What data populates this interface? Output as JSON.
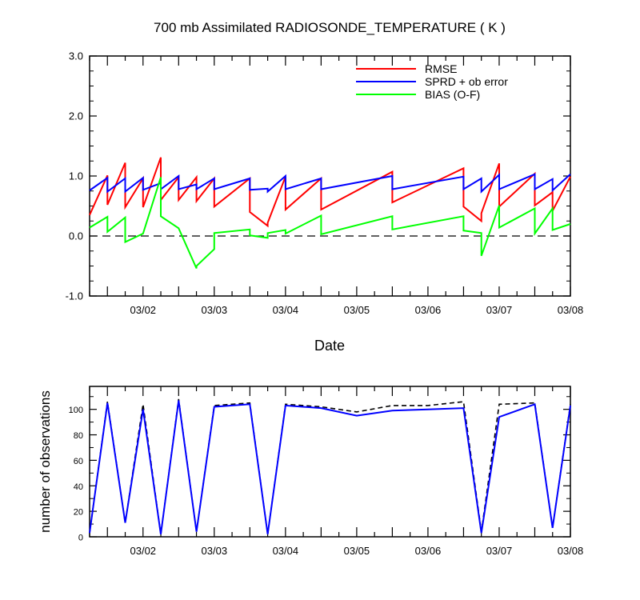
{
  "chart_data": [
    {
      "type": "line",
      "title": "700 mb Assimilated RADIOSONDE_TEMPERATURE ( K )",
      "xlabel": "Date",
      "ylabel": "",
      "x_type": "date",
      "xlim": [
        "2012-03-01 06:00",
        "2012-03-08 00:00"
      ],
      "ylim": [
        -1.0,
        3.0
      ],
      "yticks": [
        -1.0,
        0.0,
        1.0,
        2.0,
        3.0
      ],
      "ytick_labels": [
        "-1.0",
        "0.0",
        "1.0",
        "2.0",
        "3.0"
      ],
      "xtick_labels": [
        "03/02",
        "03/03",
        "03/04",
        "03/05",
        "03/06",
        "03/07",
        "03/08"
      ],
      "zero_line": "dashed",
      "grid": false,
      "legend_position": "top-right",
      "series": [
        {
          "name": "RMSE",
          "color": "#ff0000",
          "x": [
            "2012-03-01 06:00",
            "2012-03-01 12:00",
            "2012-03-01 12:00",
            "2012-03-01 18:00",
            "2012-03-01 18:00",
            "2012-03-02 00:00",
            "2012-03-02 00:00",
            "2012-03-02 06:00",
            "2012-03-02 06:00",
            "2012-03-02 12:00",
            "2012-03-02 12:00",
            "2012-03-02 18:00",
            "2012-03-02 18:00",
            "2012-03-03 00:00",
            "2012-03-03 00:00",
            "2012-03-03 12:00",
            "2012-03-03 12:00",
            "2012-03-03 18:00",
            "2012-03-03 18:00",
            "2012-03-04 00:00",
            "2012-03-04 00:00",
            "2012-03-04 12:00",
            "2012-03-04 12:00",
            "2012-03-05 12:00",
            "2012-03-05 12:00",
            "2012-03-06 12:00",
            "2012-03-06 12:00",
            "2012-03-06 18:00",
            "2012-03-06 18:00",
            "2012-03-07 00:00",
            "2012-03-07 00:00",
            "2012-03-07 12:00",
            "2012-03-07 12:00",
            "2012-03-07 18:00",
            "2012-03-07 18:00",
            "2012-03-08 00:00"
          ],
          "y": [
            0.35,
            1.01,
            0.52,
            1.22,
            0.48,
            0.96,
            0.48,
            1.31,
            0.6,
            0.98,
            0.6,
            0.98,
            0.58,
            0.96,
            0.49,
            0.96,
            0.4,
            0.17,
            0.22,
            0.99,
            0.44,
            0.96,
            0.44,
            1.07,
            0.56,
            1.13,
            0.49,
            0.25,
            0.38,
            1.21,
            0.49,
            1.04,
            0.51,
            0.73,
            0.42,
            0.99
          ]
        },
        {
          "name": "SPRD + ob error",
          "color": "#0000ff",
          "x": [
            "2012-03-01 06:00",
            "2012-03-01 12:00",
            "2012-03-01 12:00",
            "2012-03-01 18:00",
            "2012-03-01 18:00",
            "2012-03-02 00:00",
            "2012-03-02 00:00",
            "2012-03-02 06:00",
            "2012-03-02 06:00",
            "2012-03-02 12:00",
            "2012-03-02 12:00",
            "2012-03-02 18:00",
            "2012-03-02 18:00",
            "2012-03-03 00:00",
            "2012-03-03 00:00",
            "2012-03-03 12:00",
            "2012-03-03 12:00",
            "2012-03-03 18:00",
            "2012-03-03 18:00",
            "2012-03-04 00:00",
            "2012-03-04 00:00",
            "2012-03-04 12:00",
            "2012-03-04 12:00",
            "2012-03-05 12:00",
            "2012-03-05 12:00",
            "2012-03-06 12:00",
            "2012-03-06 12:00",
            "2012-03-06 18:00",
            "2012-03-06 18:00",
            "2012-03-07 00:00",
            "2012-03-07 00:00",
            "2012-03-07 12:00",
            "2012-03-07 12:00",
            "2012-03-07 18:00",
            "2012-03-07 18:00",
            "2012-03-08 00:00"
          ],
          "y": [
            0.76,
            0.97,
            0.74,
            0.96,
            0.74,
            0.97,
            0.77,
            0.88,
            0.78,
            1.0,
            0.78,
            0.86,
            0.78,
            0.96,
            0.78,
            0.96,
            0.77,
            0.79,
            0.74,
            1.0,
            0.78,
            0.96,
            0.78,
            1.0,
            0.78,
            0.99,
            0.78,
            0.96,
            0.74,
            1.02,
            0.78,
            1.03,
            0.78,
            0.95,
            0.76,
            1.03
          ]
        },
        {
          "name": "BIAS (O-F)",
          "color": "#00ff00",
          "x": [
            "2012-03-01 06:00",
            "2012-03-01 12:00",
            "2012-03-01 12:00",
            "2012-03-01 18:00",
            "2012-03-01 18:00",
            "2012-03-02 00:00",
            "2012-03-02 00:00",
            "2012-03-02 06:00",
            "2012-03-02 06:00",
            "2012-03-02 12:00",
            "2012-03-02 18:00",
            "2012-03-02 18:00",
            "2012-03-03 00:00",
            "2012-03-03 00:00",
            "2012-03-03 12:00",
            "2012-03-03 12:00",
            "2012-03-03 18:00",
            "2012-03-03 18:00",
            "2012-03-04 00:00",
            "2012-03-04 00:00",
            "2012-03-04 12:00",
            "2012-03-04 12:00",
            "2012-03-05 12:00",
            "2012-03-05 12:00",
            "2012-03-06 12:00",
            "2012-03-06 12:00",
            "2012-03-06 18:00",
            "2012-03-06 18:00",
            "2012-03-07 00:00",
            "2012-03-07 00:00",
            "2012-03-07 12:00",
            "2012-03-07 12:00",
            "2012-03-07 18:00",
            "2012-03-07 18:00",
            "2012-03-08 00:00"
          ],
          "y": [
            0.14,
            0.32,
            0.07,
            0.31,
            -0.1,
            0.04,
            0.04,
            0.98,
            0.33,
            0.13,
            -0.54,
            -0.5,
            -0.22,
            0.05,
            0.11,
            0.01,
            -0.03,
            0.05,
            0.1,
            0.04,
            0.34,
            0.03,
            0.33,
            0.11,
            0.33,
            0.09,
            0.05,
            -0.33,
            0.51,
            0.14,
            0.46,
            0.04,
            0.46,
            0.1,
            0.2
          ]
        }
      ]
    },
    {
      "type": "line",
      "title": "",
      "xlabel": "",
      "ylabel": "number of observations",
      "x_type": "date",
      "xlim": [
        "2012-03-01 06:00",
        "2012-03-08 00:00"
      ],
      "ylim": [
        0,
        118
      ],
      "yticks": [
        0,
        20,
        40,
        60,
        80,
        100
      ],
      "ytick_labels": [
        "0",
        "20",
        "40",
        "60",
        "80",
        "100"
      ],
      "xtick_labels": [
        "03/02",
        "03/03",
        "03/04",
        "03/05",
        "03/06",
        "03/07",
        "03/08"
      ],
      "grid": false,
      "series": [
        {
          "color": "#000000",
          "style": "dashed",
          "x": [
            "2012-03-01 06:00",
            "2012-03-01 12:00",
            "2012-03-01 18:00",
            "2012-03-02 00:00",
            "2012-03-02 06:00",
            "2012-03-02 12:00",
            "2012-03-02 18:00",
            "2012-03-03 00:00",
            "2012-03-03 12:00",
            "2012-03-03 18:00",
            "2012-03-04 00:00",
            "2012-03-04 12:00",
            "2012-03-05 00:00",
            "2012-03-05 12:00",
            "2012-03-06 00:00",
            "2012-03-06 12:00",
            "2012-03-06 18:00",
            "2012-03-07 00:00",
            "2012-03-07 12:00",
            "2012-03-07 18:00",
            "2012-03-08 00:00"
          ],
          "y": [
            3,
            106,
            11,
            104,
            2,
            108,
            4,
            103,
            105,
            2,
            104,
            102,
            98,
            103,
            103,
            106,
            4,
            104,
            105,
            7,
            104
          ]
        },
        {
          "color": "#0000ff",
          "style": "solid",
          "x": [
            "2012-03-01 06:00",
            "2012-03-01 12:00",
            "2012-03-01 18:00",
            "2012-03-02 00:00",
            "2012-03-02 06:00",
            "2012-03-02 12:00",
            "2012-03-02 18:00",
            "2012-03-03 00:00",
            "2012-03-03 12:00",
            "2012-03-03 18:00",
            "2012-03-04 00:00",
            "2012-03-04 12:00",
            "2012-03-05 00:00",
            "2012-03-05 12:00",
            "2012-03-06 00:00",
            "2012-03-06 12:00",
            "2012-03-06 18:00",
            "2012-03-07 00:00",
            "2012-03-07 12:00",
            "2012-03-07 18:00",
            "2012-03-08 00:00"
          ],
          "y": [
            3,
            105,
            11,
            100,
            2,
            107,
            4,
            102,
            104,
            2,
            103,
            101,
            95,
            99,
            100,
            101,
            3,
            94,
            104,
            7,
            103
          ]
        }
      ]
    }
  ]
}
